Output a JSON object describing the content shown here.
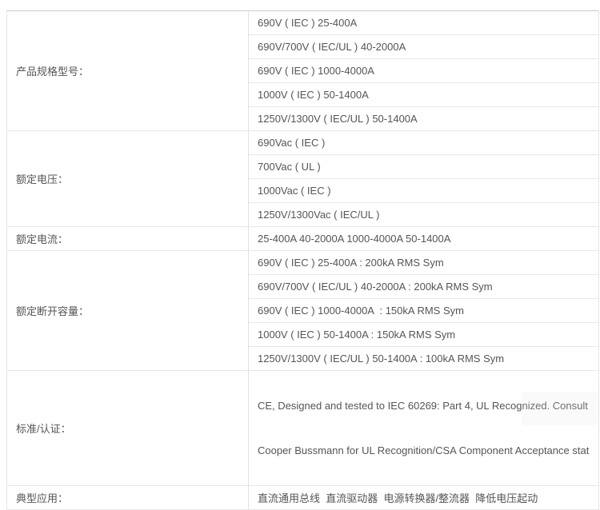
{
  "table": {
    "sections": [
      {
        "label": "产品规格型号：",
        "values": [
          "690V ( IEC ) 25-400A",
          "690V/700V ( IEC/UL ) 40-2000A",
          "690V ( IEC ) 1000-4000A",
          "1000V ( IEC ) 50-1400A",
          "1250V/1300V ( IEC/UL ) 50-1400A"
        ]
      },
      {
        "label": "额定电压：",
        "values": [
          "690Vac ( IEC )",
          "700Vac ( UL )",
          "1000Vac ( IEC )",
          "1250V/1300Vac ( IEC/UL )"
        ]
      },
      {
        "label": "额定电流：",
        "values": [
          "25-400A 40-2000A 1000-4000A 50-1400A"
        ]
      },
      {
        "label": "额定断开容量：",
        "values": [
          "690V ( IEC ) 25-400A : 200kA RMS Sym",
          "690V/700V ( IEC/UL ) 40-2000A : 200kA RMS Sym",
          "690V ( IEC ) 1000-4000A  : 150kA RMS Sym",
          "1000V ( IEC ) 50-1400A : 150kA RMS Sym",
          "1250V/1300V ( IEC/UL ) 50-1400A : 100kA RMS Sym"
        ]
      },
      {
        "label": "标准/认证：",
        "lines": [
          "CE, Designed and tested to IEC 60269: Part 4, UL Recognized. Consult",
          "Cooper Bussmann for UL Recognition/CSA Component Acceptance statu"
        ]
      },
      {
        "label": "典型应用：",
        "values": [
          "直流通用总线  直流驱动器  电源转换器/整流器  降低电压起动"
        ]
      }
    ],
    "colors": {
      "text": "#555555",
      "border_outer": "#c9c9c9",
      "border_inner": "#e7e7e7",
      "background": "#ffffff"
    }
  }
}
